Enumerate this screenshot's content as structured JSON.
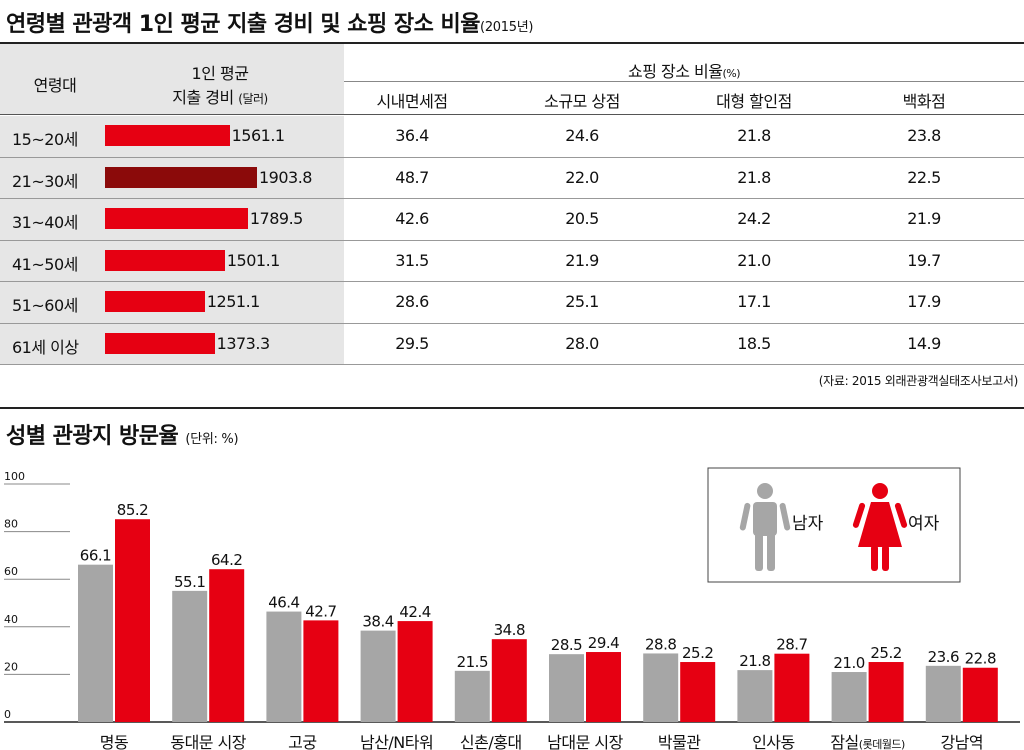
{
  "chart_data": [
    {
      "type": "table",
      "title": "연령별 관광객 1인 평균 지출 경비 및 쇼핑 장소 비율",
      "title_suffix": "(2015년)",
      "header": {
        "age": "연령대",
        "spend_line1": "1인 평균",
        "spend_line2": "지출 경비",
        "spend_unit": "(달러)",
        "shopping_group": "쇼핑 장소 비율",
        "shopping_unit": "(%)",
        "places": [
          "시내면세점",
          "소규모 상점",
          "대형 할인점",
          "백화점"
        ]
      },
      "rows": [
        {
          "age": "15~20세",
          "spend": 1561.1,
          "spend_label": "1561.1",
          "shares": [
            "36.4",
            "24.6",
            "21.8",
            "23.8"
          ]
        },
        {
          "age": "21~30세",
          "spend": 1903.8,
          "spend_label": "1903.8",
          "shares": [
            "48.7",
            "22.0",
            "21.8",
            "22.5"
          ]
        },
        {
          "age": "31~40세",
          "spend": 1789.5,
          "spend_label": "1789.5",
          "shares": [
            "42.6",
            "20.5",
            "24.2",
            "21.9"
          ]
        },
        {
          "age": "41~50세",
          "spend": 1501.1,
          "spend_label": "1501.1",
          "shares": [
            "31.5",
            "21.9",
            "21.0",
            "19.7"
          ]
        },
        {
          "age": "51~60세",
          "spend": 1251.1,
          "spend_label": "1251.1",
          "shares": [
            "28.6",
            "25.1",
            "17.1",
            "17.9"
          ]
        },
        {
          "age": "61세 이상",
          "spend": 1373.3,
          "spend_label": "1373.3",
          "shares": [
            "29.5",
            "28.0",
            "18.5",
            "14.9"
          ]
        }
      ],
      "colors": {
        "bar": "#e60012",
        "bar_max": "#8b0a0a",
        "label_bg": "#e6e6e6"
      },
      "source": "(자료: 2015 외래관광객실태조사보고서)"
    },
    {
      "type": "bar",
      "title": "성별 관광지 방문율",
      "unit": "(단위: %)",
      "ylim": [
        0,
        100
      ],
      "yticks": [
        "0",
        "20",
        "40",
        "60",
        "80",
        "100"
      ],
      "categories": [
        "명동",
        "동대문 시장",
        "고궁",
        "남산/N타워",
        "신촌/홍대",
        "남대문 시장",
        "박물관",
        "인사동",
        "잠실",
        "강남역"
      ],
      "category_notes": [
        "",
        "",
        "",
        "",
        "",
        "",
        "",
        "",
        "(롯데월드)",
        ""
      ],
      "series": [
        {
          "name": "남자",
          "color": "#a6a6a6",
          "values": [
            66.1,
            55.1,
            46.4,
            38.4,
            21.5,
            28.5,
            28.8,
            21.8,
            21.0,
            23.6
          ],
          "labels": [
            "66.1",
            "55.1",
            "46.4",
            "38.4",
            "21.5",
            "28.5",
            "28.8",
            "21.8",
            "21.0",
            "23.6"
          ]
        },
        {
          "name": "여자",
          "color": "#e60012",
          "values": [
            85.2,
            64.2,
            42.7,
            42.4,
            34.8,
            29.4,
            25.2,
            28.7,
            25.2,
            22.8
          ],
          "labels": [
            "85.2",
            "64.2",
            "42.7",
            "42.4",
            "34.8",
            "29.4",
            "25.2",
            "28.7",
            "25.2",
            "22.8"
          ]
        }
      ],
      "legend": "top-right",
      "legend_icons": [
        "man-figure-icon",
        "woman-figure-icon"
      ],
      "grid": true
    }
  ]
}
